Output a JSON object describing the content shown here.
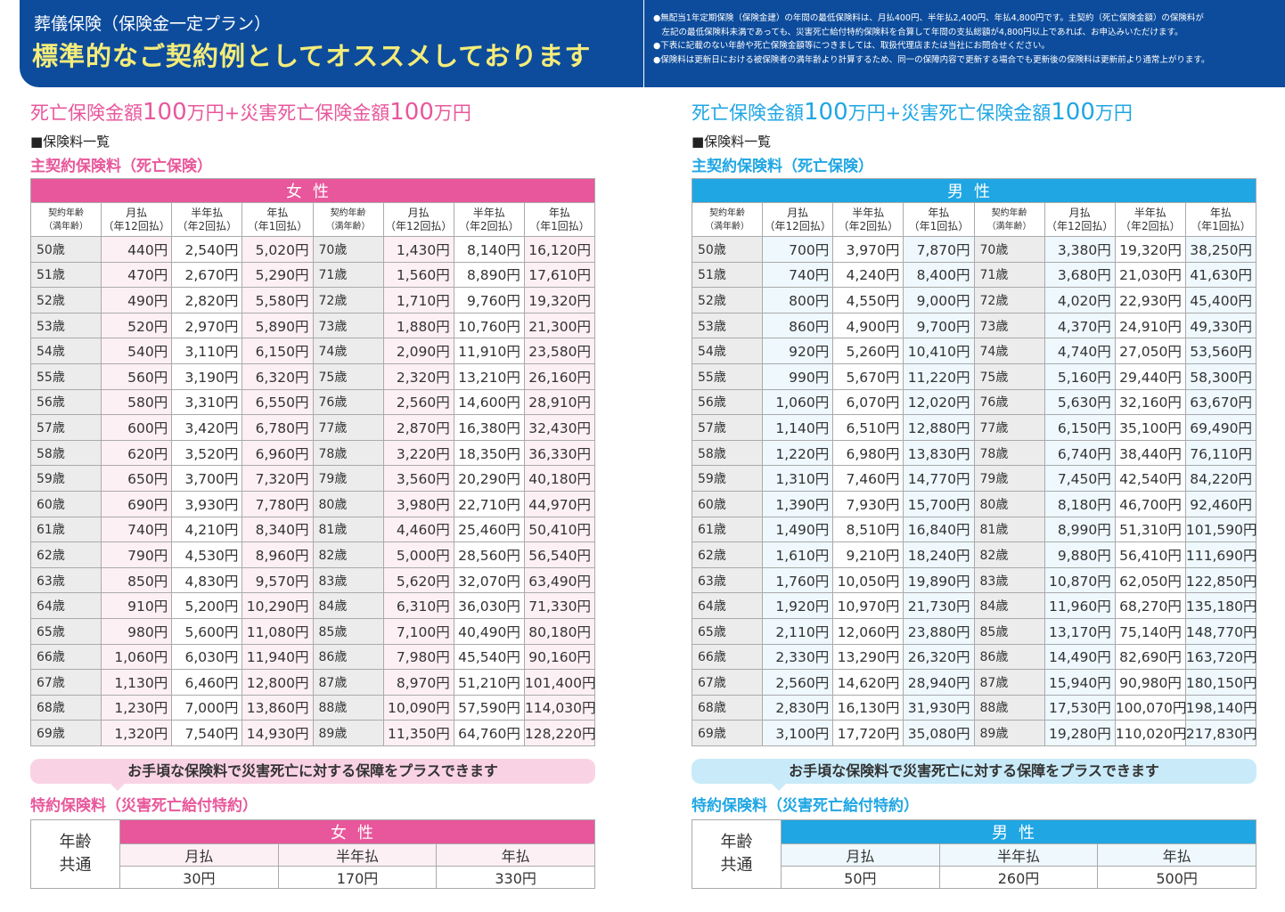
{
  "header": {
    "subtitle": "葬儀保険（保険金一定プラン）",
    "title": "標準的なご契約例としてオススメしております",
    "notes": [
      "●無配当1年定期保険（保険金建）の年間の最低保険料は、月払400円、半年払2,400円、年払4,800円です。主契約（死亡保険金額）の保険料が",
      "　左記の最低保険料未満であっても、災害死亡給付特約保険料を合算して年間の支払総額が4,800円以上であれば、お申込みいただけます。",
      "●下表に記載のない年齢や死亡保険金額等につきましては、取扱代理店または当社にお問合せください。",
      "●保険料は更新日における被保険者の満年齢より計算するため、同一の保障内容で更新する場合でも更新後の保険料は更新前より通常上がります。"
    ]
  },
  "colors": {
    "female": "#e8579b",
    "male": "#1fa6e3",
    "band": "#0d4c9c"
  },
  "common": {
    "plan_a": "死亡保険金額",
    "plan_amt": "100",
    "plan_b": "万円+災害死亡保険金額",
    "plan_c": "万円",
    "list_label": "■保険料一覧",
    "main_section": "主契約保険料（死亡保険）",
    "age_head": [
      "契約年齢",
      "（満年齢）"
    ],
    "col_heads": [
      [
        "月払",
        "（年12回払）"
      ],
      [
        "半年払",
        "（年2回払）"
      ],
      [
        "年払",
        "（年1回払）"
      ]
    ],
    "banner": "お手頃な保険料で災害死亡に対する保障をプラスできます",
    "rider_section": "特約保険料（災害死亡給付特約）",
    "age_common": [
      "年齢",
      "共通"
    ],
    "rider_cols": [
      "月払",
      "半年払",
      "年払"
    ]
  },
  "female": {
    "label": "女性",
    "rider": [
      "30円",
      "170円",
      "330円"
    ],
    "rows": [
      [
        "50歳",
        "440円",
        "2,540円",
        "5,020円",
        "70歳",
        "1,430円",
        "8,140円",
        "16,120円"
      ],
      [
        "51歳",
        "470円",
        "2,670円",
        "5,290円",
        "71歳",
        "1,560円",
        "8,890円",
        "17,610円"
      ],
      [
        "52歳",
        "490円",
        "2,820円",
        "5,580円",
        "72歳",
        "1,710円",
        "9,760円",
        "19,320円"
      ],
      [
        "53歳",
        "520円",
        "2,970円",
        "5,890円",
        "73歳",
        "1,880円",
        "10,760円",
        "21,300円"
      ],
      [
        "54歳",
        "540円",
        "3,110円",
        "6,150円",
        "74歳",
        "2,090円",
        "11,910円",
        "23,580円"
      ],
      [
        "55歳",
        "560円",
        "3,190円",
        "6,320円",
        "75歳",
        "2,320円",
        "13,210円",
        "26,160円"
      ],
      [
        "56歳",
        "580円",
        "3,310円",
        "6,550円",
        "76歳",
        "2,560円",
        "14,600円",
        "28,910円"
      ],
      [
        "57歳",
        "600円",
        "3,420円",
        "6,780円",
        "77歳",
        "2,870円",
        "16,380円",
        "32,430円"
      ],
      [
        "58歳",
        "620円",
        "3,520円",
        "6,960円",
        "78歳",
        "3,220円",
        "18,350円",
        "36,330円"
      ],
      [
        "59歳",
        "650円",
        "3,700円",
        "7,320円",
        "79歳",
        "3,560円",
        "20,290円",
        "40,180円"
      ],
      [
        "60歳",
        "690円",
        "3,930円",
        "7,780円",
        "80歳",
        "3,980円",
        "22,710円",
        "44,970円"
      ],
      [
        "61歳",
        "740円",
        "4,210円",
        "8,340円",
        "81歳",
        "4,460円",
        "25,460円",
        "50,410円"
      ],
      [
        "62歳",
        "790円",
        "4,530円",
        "8,960円",
        "82歳",
        "5,000円",
        "28,560円",
        "56,540円"
      ],
      [
        "63歳",
        "850円",
        "4,830円",
        "9,570円",
        "83歳",
        "5,620円",
        "32,070円",
        "63,490円"
      ],
      [
        "64歳",
        "910円",
        "5,200円",
        "10,290円",
        "84歳",
        "6,310円",
        "36,030円",
        "71,330円"
      ],
      [
        "65歳",
        "980円",
        "5,600円",
        "11,080円",
        "85歳",
        "7,100円",
        "40,490円",
        "80,180円"
      ],
      [
        "66歳",
        "1,060円",
        "6,030円",
        "11,940円",
        "86歳",
        "7,980円",
        "45,540円",
        "90,160円"
      ],
      [
        "67歳",
        "1,130円",
        "6,460円",
        "12,800円",
        "87歳",
        "8,970円",
        "51,210円",
        "101,400円"
      ],
      [
        "68歳",
        "1,230円",
        "7,000円",
        "13,860円",
        "88歳",
        "10,090円",
        "57,590円",
        "114,030円"
      ],
      [
        "69歳",
        "1,320円",
        "7,540円",
        "14,930円",
        "89歳",
        "11,350円",
        "64,760円",
        "128,220円"
      ]
    ]
  },
  "male": {
    "label": "男性",
    "rider": [
      "50円",
      "260円",
      "500円"
    ],
    "rows": [
      [
        "50歳",
        "700円",
        "3,970円",
        "7,870円",
        "70歳",
        "3,380円",
        "19,320円",
        "38,250円"
      ],
      [
        "51歳",
        "740円",
        "4,240円",
        "8,400円",
        "71歳",
        "3,680円",
        "21,030円",
        "41,630円"
      ],
      [
        "52歳",
        "800円",
        "4,550円",
        "9,000円",
        "72歳",
        "4,020円",
        "22,930円",
        "45,400円"
      ],
      [
        "53歳",
        "860円",
        "4,900円",
        "9,700円",
        "73歳",
        "4,370円",
        "24,910円",
        "49,330円"
      ],
      [
        "54歳",
        "920円",
        "5,260円",
        "10,410円",
        "74歳",
        "4,740円",
        "27,050円",
        "53,560円"
      ],
      [
        "55歳",
        "990円",
        "5,670円",
        "11,220円",
        "75歳",
        "5,160円",
        "29,440円",
        "58,300円"
      ],
      [
        "56歳",
        "1,060円",
        "6,070円",
        "12,020円",
        "76歳",
        "5,630円",
        "32,160円",
        "63,670円"
      ],
      [
        "57歳",
        "1,140円",
        "6,510円",
        "12,880円",
        "77歳",
        "6,150円",
        "35,100円",
        "69,490円"
      ],
      [
        "58歳",
        "1,220円",
        "6,980円",
        "13,830円",
        "78歳",
        "6,740円",
        "38,440円",
        "76,110円"
      ],
      [
        "59歳",
        "1,310円",
        "7,460円",
        "14,770円",
        "79歳",
        "7,450円",
        "42,540円",
        "84,220円"
      ],
      [
        "60歳",
        "1,390円",
        "7,930円",
        "15,700円",
        "80歳",
        "8,180円",
        "46,700円",
        "92,460円"
      ],
      [
        "61歳",
        "1,490円",
        "8,510円",
        "16,840円",
        "81歳",
        "8,990円",
        "51,310円",
        "101,590円"
      ],
      [
        "62歳",
        "1,610円",
        "9,210円",
        "18,240円",
        "82歳",
        "9,880円",
        "56,410円",
        "111,690円"
      ],
      [
        "63歳",
        "1,760円",
        "10,050円",
        "19,890円",
        "83歳",
        "10,870円",
        "62,050円",
        "122,850円"
      ],
      [
        "64歳",
        "1,920円",
        "10,970円",
        "21,730円",
        "84歳",
        "11,960円",
        "68,270円",
        "135,180円"
      ],
      [
        "65歳",
        "2,110円",
        "12,060円",
        "23,880円",
        "85歳",
        "13,170円",
        "75,140円",
        "148,770円"
      ],
      [
        "66歳",
        "2,330円",
        "13,290円",
        "26,320円",
        "86歳",
        "14,490円",
        "82,690円",
        "163,720円"
      ],
      [
        "67歳",
        "2,560円",
        "14,620円",
        "28,940円",
        "87歳",
        "15,940円",
        "90,980円",
        "180,150円"
      ],
      [
        "68歳",
        "2,830円",
        "16,130円",
        "31,930円",
        "88歳",
        "17,530円",
        "100,070円",
        "198,140円"
      ],
      [
        "69歳",
        "3,100円",
        "17,720円",
        "35,080円",
        "89歳",
        "19,280円",
        "110,020円",
        "217,830円"
      ]
    ]
  }
}
